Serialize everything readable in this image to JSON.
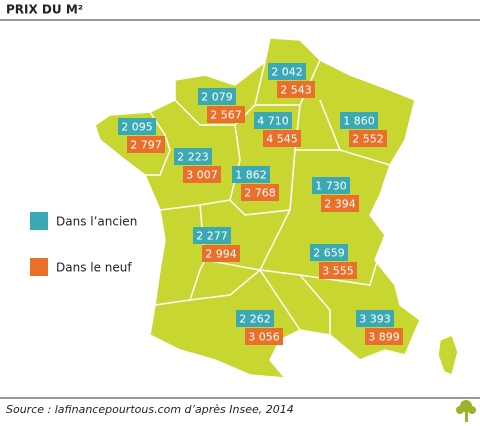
{
  "title": "PRIX DU M²",
  "legend": [
    {
      "label": "Dans l’ancien",
      "color": "#3aa9b4"
    },
    {
      "label": "Dans le neuf",
      "color": "#e8702a"
    }
  ],
  "regions": [
    {
      "ancien": "2 095",
      "neuf": "2 797"
    },
    {
      "ancien": "2 079",
      "neuf": "2 567"
    },
    {
      "ancien": "2 042",
      "neuf": "2 543"
    },
    {
      "ancien": "4 710",
      "neuf": "4 545"
    },
    {
      "ancien": "1 860",
      "neuf": "2 552"
    },
    {
      "ancien": "2 223",
      "neuf": "3 007"
    },
    {
      "ancien": "1 862",
      "neuf": "2 768"
    },
    {
      "ancien": "1 730",
      "neuf": "2 394"
    },
    {
      "ancien": "2 277",
      "neuf": "2 994"
    },
    {
      "ancien": "2 659",
      "neuf": "3 555"
    },
    {
      "ancien": "2 262",
      "neuf": "3 056"
    },
    {
      "ancien": "3 393",
      "neuf": "3 899"
    }
  ],
  "source": "Source : lafinancepourtous.com d’après Insee, 2014"
}
